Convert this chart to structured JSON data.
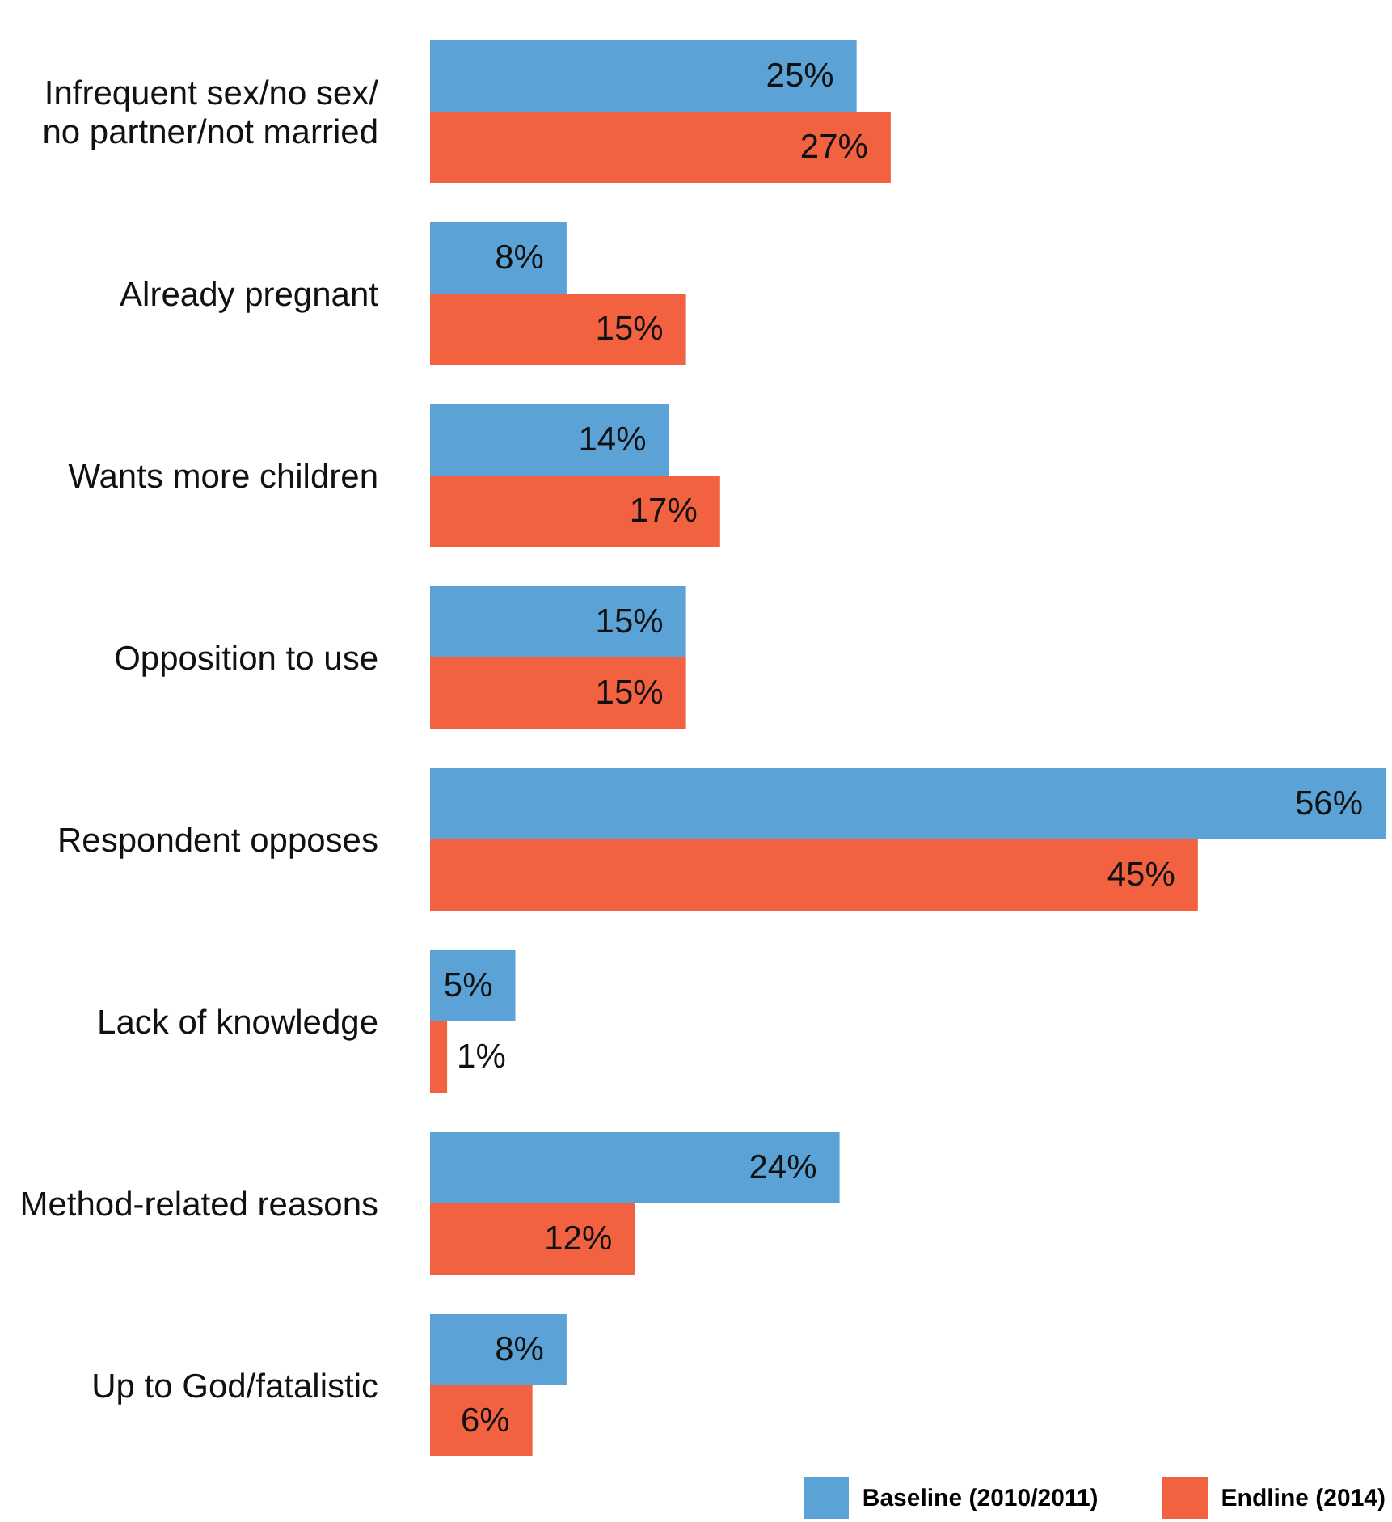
{
  "chart_data": {
    "type": "bar",
    "orientation": "horizontal",
    "categories": [
      "Infrequent sex/no sex/ no partner/not married",
      "Already pregnant",
      "Wants more children",
      "Opposition to use",
      "Respondent opposes",
      "Lack of knowledge",
      "Method-related reasons",
      "Up to God/fatalistic"
    ],
    "series": [
      {
        "name": "Baseline (2010/2011)",
        "color": "#5ba3d6",
        "values": [
          25,
          8,
          14,
          15,
          56,
          5,
          24,
          8
        ],
        "value_labels": [
          "25%",
          "8%",
          "14%",
          "15%",
          "56%",
          "5%",
          "24%",
          "8%"
        ]
      },
      {
        "name": "Endline (2014)",
        "color": "#f26241",
        "values": [
          27,
          15,
          17,
          15,
          45,
          1,
          12,
          6
        ],
        "value_labels": [
          "27%",
          "15%",
          "17%",
          "15%",
          "45%",
          "1%",
          "12%",
          "6%"
        ]
      }
    ],
    "legend": "bottom right",
    "grid": false
  }
}
